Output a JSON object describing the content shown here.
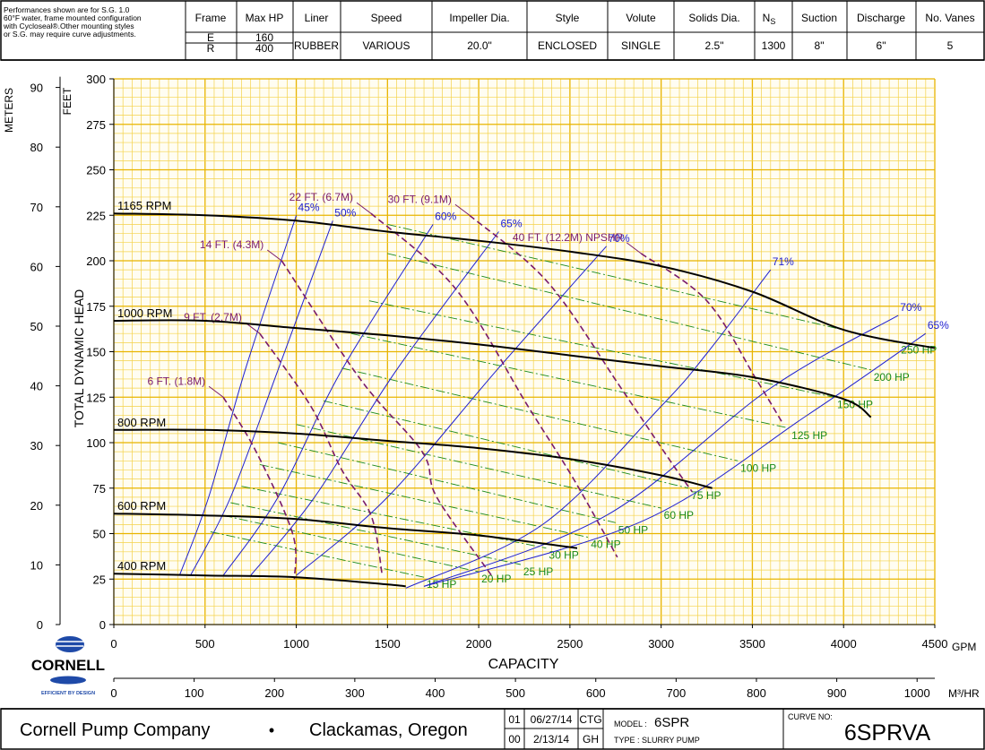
{
  "header": {
    "note_lines": [
      "Performances shown are for S.G. 1.0",
      "60°F water, frame mounted configuration",
      "with Cycloseal®.Other mounting styles",
      "or S.G. may require curve adjustments."
    ],
    "frame_label": "Frame",
    "frame_values": [
      "E",
      "R"
    ],
    "maxhp_label": "Max HP",
    "maxhp_values": [
      "160",
      "400"
    ],
    "liner_label": "Liner",
    "liner_value": "RUBBER",
    "speed_label": "Speed",
    "speed_value": "VARIOUS",
    "impeller_label": "Impeller Dia.",
    "impeller_value": "20.0\"",
    "style_label": "Style",
    "style_value": "ENCLOSED",
    "volute_label": "Volute",
    "volute_value": "SINGLE",
    "solids_label": "Solids Dia.",
    "solids_value": "2.5\"",
    "ns_label": "N",
    "ns_sub": "S",
    "ns_value": "1300",
    "suction_label": "Suction",
    "suction_value": "8\"",
    "discharge_label": "Discharge",
    "discharge_value": "6\"",
    "vanes_label": "No. Vanes",
    "vanes_value": "5"
  },
  "footer": {
    "company": "Cornell Pump Company",
    "bullet": "•",
    "city": "Clackamas, Oregon",
    "revisions": [
      {
        "rev": "01",
        "date": "06/27/14",
        "by": "CTG"
      },
      {
        "rev": "00",
        "date": "2/13/14",
        "by": "GH"
      }
    ],
    "model_prefix": "MODEL : ",
    "model_value": "6SPR",
    "type_text": "TYPE : SLURRY PUMP",
    "curve_no_label": "CURVE NO:",
    "curve_no_value": "6SPRVA"
  },
  "logo": {
    "text": "CORNELL",
    "tagline": "EFFICIENT BY DESIGN"
  },
  "colors": {
    "grid_major": "#e8b400",
    "grid_minor": "#f4d24a",
    "head_curve": "#000000",
    "efficiency": "#2020d0",
    "npshr": "#7a1a6a",
    "horsepower": "#1a8a1a"
  },
  "chart_data": {
    "type": "line",
    "xlabel": "CAPACITY",
    "x_unit": "GPM",
    "x2_unit": "M³/HR",
    "ylabel": "TOTAL DYNAMIC HEAD",
    "y_unit": "FEET",
    "y2_unit": "METERS",
    "xlim": [
      0,
      4500
    ],
    "ylim": [
      0,
      300
    ],
    "x_ticks": [
      0,
      500,
      1000,
      1500,
      2000,
      2500,
      3000,
      3500,
      4000,
      4500
    ],
    "y_ticks": [
      0,
      25,
      50,
      75,
      100,
      125,
      150,
      175,
      200,
      225,
      250,
      275,
      300
    ],
    "x2_ticks": [
      0,
      100,
      200,
      300,
      400,
      500,
      600,
      700,
      800,
      900,
      1000
    ],
    "y2_ticks": [
      0,
      10,
      20,
      30,
      40,
      50,
      60,
      70,
      80,
      90
    ],
    "grid": true,
    "head_curves": [
      {
        "name": "1165 RPM",
        "points": [
          [
            0,
            226
          ],
          [
            500,
            225
          ],
          [
            1000,
            222
          ],
          [
            1500,
            216
          ],
          [
            2000,
            211
          ],
          [
            2500,
            205
          ],
          [
            3000,
            197
          ],
          [
            3500,
            183
          ],
          [
            4000,
            162
          ],
          [
            4500,
            152
          ]
        ]
      },
      {
        "name": "1000 RPM",
        "points": [
          [
            0,
            167
          ],
          [
            500,
            167
          ],
          [
            1000,
            163
          ],
          [
            1500,
            159
          ],
          [
            2000,
            154
          ],
          [
            2500,
            148
          ],
          [
            3000,
            142
          ],
          [
            3500,
            136
          ],
          [
            4000,
            124
          ],
          [
            4150,
            114
          ]
        ]
      },
      {
        "name": "800 RPM",
        "points": [
          [
            0,
            107
          ],
          [
            500,
            107
          ],
          [
            1000,
            105
          ],
          [
            1500,
            101
          ],
          [
            2000,
            97
          ],
          [
            2500,
            91
          ],
          [
            3000,
            82
          ],
          [
            3280,
            75
          ]
        ]
      },
      {
        "name": "600 RPM",
        "points": [
          [
            0,
            61
          ],
          [
            500,
            60
          ],
          [
            1000,
            58
          ],
          [
            1500,
            53
          ],
          [
            2000,
            49
          ],
          [
            2540,
            42
          ]
        ]
      },
      {
        "name": "400 RPM",
        "points": [
          [
            0,
            28
          ],
          [
            500,
            27
          ],
          [
            1000,
            26
          ],
          [
            1500,
            22
          ],
          [
            1600,
            21
          ]
        ]
      }
    ],
    "efficiency_curves": [
      {
        "label": "45%",
        "points": [
          [
            360,
            27
          ],
          [
            520,
            70
          ],
          [
            720,
            140
          ],
          [
            1000,
            225
          ]
        ]
      },
      {
        "label": "50%",
        "points": [
          [
            420,
            27
          ],
          [
            640,
            70
          ],
          [
            900,
            140
          ],
          [
            1200,
            222
          ]
        ]
      },
      {
        "label": "60%",
        "points": [
          [
            600,
            27
          ],
          [
            900,
            70
          ],
          [
            1250,
            140
          ],
          [
            1750,
            220
          ]
        ]
      },
      {
        "label": "65%",
        "points": [
          [
            750,
            27
          ],
          [
            1100,
            70
          ],
          [
            1550,
            140
          ],
          [
            2110,
            216
          ]
        ]
      },
      {
        "label": "70%",
        "points": [
          [
            1000,
            27
          ],
          [
            1500,
            70
          ],
          [
            2100,
            140
          ],
          [
            2700,
            208
          ]
        ]
      },
      {
        "label": "71%",
        "points": [
          [
            1600,
            20
          ],
          [
            2350,
            55
          ],
          [
            3000,
            120
          ],
          [
            3250,
            149
          ],
          [
            3600,
            195
          ]
        ]
      },
      {
        "label": "70%",
        "points": [
          [
            1700,
            21
          ],
          [
            2700,
            60
          ],
          [
            3600,
            130
          ],
          [
            4300,
            170
          ]
        ]
      },
      {
        "label": "65%",
        "points": [
          [
            1700,
            21
          ],
          [
            2900,
            57
          ],
          [
            3800,
            115
          ],
          [
            4450,
            160
          ]
        ]
      }
    ],
    "npshr_curves": [
      {
        "label": "6 FT. (1.8M)",
        "points": [
          [
            600,
            125
          ],
          [
            780,
            95
          ],
          [
            980,
            50
          ],
          [
            990,
            25
          ]
        ]
      },
      {
        "label": "9 FT. (2.7M)",
        "points": [
          [
            800,
            160
          ],
          [
            1080,
            120
          ],
          [
            1250,
            85
          ],
          [
            1410,
            60
          ],
          [
            1470,
            28
          ]
        ]
      },
      {
        "label": "14 FT. (4.3M)",
        "points": [
          [
            920,
            200
          ],
          [
            1350,
            135
          ],
          [
            1690,
            95
          ],
          [
            1770,
            70
          ],
          [
            2070,
            27
          ]
        ]
      },
      {
        "label": "22 FT. (6.7M)",
        "points": [
          [
            1410,
            226
          ],
          [
            1870,
            185
          ],
          [
            2270,
            120
          ],
          [
            2520,
            80
          ],
          [
            2760,
            37
          ]
        ]
      },
      {
        "label": "30 FT. (9.1M)",
        "points": [
          [
            1950,
            225
          ],
          [
            2380,
            188
          ],
          [
            2780,
            130
          ],
          [
            3050,
            90
          ],
          [
            3170,
            73
          ]
        ]
      },
      {
        "label": "40 FT. (12.2M) NPSHR",
        "points": [
          [
            2890,
            204
          ],
          [
            3250,
            178
          ],
          [
            3520,
            135
          ],
          [
            3670,
            110
          ]
        ]
      }
    ],
    "hp_lines": [
      {
        "label": "15 HP",
        "points": [
          [
            530,
            51
          ],
          [
            1700,
            26
          ]
        ]
      },
      {
        "label": "20 HP",
        "points": [
          [
            600,
            60
          ],
          [
            2000,
            29
          ]
        ]
      },
      {
        "label": "25 HP",
        "points": [
          [
            640,
            67
          ],
          [
            2230,
            33
          ]
        ]
      },
      {
        "label": "30 HP",
        "points": [
          [
            700,
            76
          ],
          [
            2370,
            42
          ]
        ]
      },
      {
        "label": "40 HP",
        "points": [
          [
            800,
            88
          ],
          [
            2600,
            48
          ]
        ]
      },
      {
        "label": "50 HP",
        "points": [
          [
            900,
            100
          ],
          [
            2750,
            56
          ]
        ]
      },
      {
        "label": "60 HP",
        "points": [
          [
            1000,
            110
          ],
          [
            3000,
            64
          ]
        ]
      },
      {
        "label": "75 HP",
        "points": [
          [
            1150,
            123
          ],
          [
            3150,
            75
          ]
        ]
      },
      {
        "label": "100 HP",
        "points": [
          [
            1250,
            141
          ],
          [
            3420,
            90
          ]
        ]
      },
      {
        "label": "125 HP",
        "points": [
          [
            1300,
            160
          ],
          [
            3700,
            108
          ]
        ]
      },
      {
        "label": "150 HP",
        "points": [
          [
            1400,
            178
          ],
          [
            3950,
            125
          ]
        ]
      },
      {
        "label": "200 HP",
        "points": [
          [
            1500,
            204
          ],
          [
            4150,
            140
          ]
        ]
      },
      {
        "label": "250 HP",
        "points": [
          [
            1500,
            220
          ],
          [
            4300,
            155
          ]
        ]
      }
    ]
  }
}
